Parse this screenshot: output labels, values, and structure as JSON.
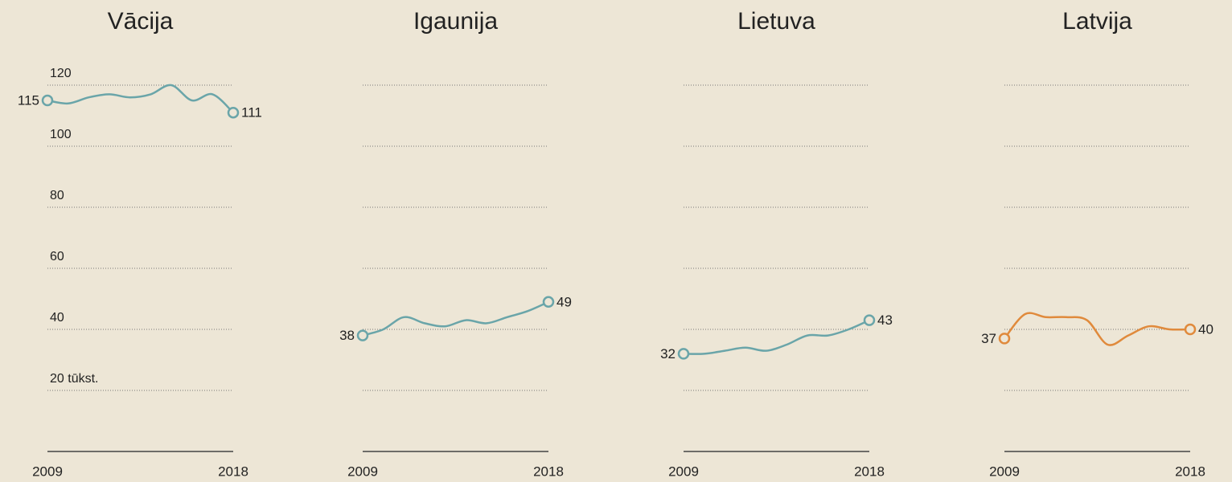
{
  "chart_data": [
    {
      "type": "line",
      "title": "Vācija",
      "x": [
        2009,
        2010,
        2011,
        2012,
        2013,
        2014,
        2015,
        2016,
        2017,
        2018
      ],
      "values": [
        115,
        114,
        116,
        117,
        116,
        117,
        120,
        115,
        117,
        111
      ],
      "color": "#6aa5a9",
      "xlim": [
        2009,
        2018
      ],
      "xticks": [
        2009,
        2018
      ],
      "ylim": [
        0,
        120
      ],
      "yticks": [
        {
          "value": 20,
          "label": "20 tūkst."
        },
        40,
        60,
        80,
        100,
        120
      ],
      "show_tick_labels": true,
      "grid": true,
      "end_labels": true
    },
    {
      "type": "line",
      "title": "Igaunija",
      "x": [
        2009,
        2010,
        2011,
        2012,
        2013,
        2014,
        2015,
        2016,
        2017,
        2018
      ],
      "values": [
        38,
        40,
        44,
        42,
        41,
        43,
        42,
        44,
        46,
        49
      ],
      "color": "#6aa5a9",
      "xlim": [
        2009,
        2018
      ],
      "xticks": [
        2009,
        2018
      ],
      "ylim": [
        0,
        120
      ],
      "yticks": [
        20,
        40,
        60,
        80,
        100,
        120
      ],
      "show_tick_labels": false,
      "grid": true,
      "end_labels": true
    },
    {
      "type": "line",
      "title": "Lietuva",
      "x": [
        2009,
        2010,
        2011,
        2012,
        2013,
        2014,
        2015,
        2016,
        2017,
        2018
      ],
      "values": [
        32,
        32,
        33,
        34,
        33,
        35,
        38,
        38,
        40,
        43
      ],
      "color": "#6aa5a9",
      "xlim": [
        2009,
        2018
      ],
      "xticks": [
        2009,
        2018
      ],
      "ylim": [
        0,
        120
      ],
      "yticks": [
        20,
        40,
        60,
        80,
        100,
        120
      ],
      "show_tick_labels": false,
      "grid": true,
      "end_labels": true
    },
    {
      "type": "line",
      "title": "Latvija",
      "x": [
        2009,
        2010,
        2011,
        2012,
        2013,
        2014,
        2015,
        2016,
        2017,
        2018
      ],
      "values": [
        37,
        45,
        44,
        44,
        43,
        35,
        38,
        41,
        40,
        40
      ],
      "color": "#e08a3c",
      "xlim": [
        2009,
        2018
      ],
      "xticks": [
        2009,
        2018
      ],
      "ylim": [
        0,
        120
      ],
      "yticks": [
        20,
        40,
        60,
        80,
        100,
        120
      ],
      "show_tick_labels": false,
      "grid": true,
      "end_labels": true
    }
  ]
}
